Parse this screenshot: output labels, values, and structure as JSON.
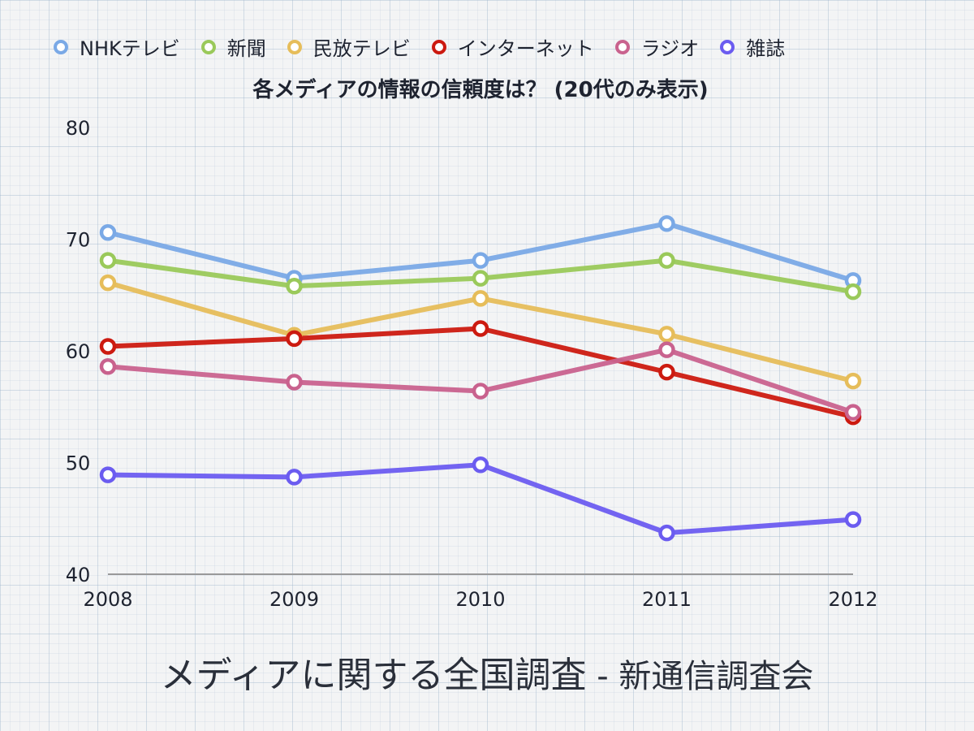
{
  "chart_data": {
    "type": "line",
    "title": "各メディアの情報の信頼度は？ (20代のみ表示)",
    "x": [
      "2008",
      "2009",
      "2010",
      "2011",
      "2012"
    ],
    "ylim": [
      40,
      80
    ],
    "yticks": [
      "40",
      "50",
      "60",
      "70",
      "80"
    ],
    "grid": false,
    "legend_position": "top",
    "series": [
      {
        "name": "NHKテレビ",
        "color": "#7aa9e6",
        "values": [
          70.6,
          66.5,
          68.1,
          71.4,
          66.3
        ]
      },
      {
        "name": "新聞",
        "color": "#9ac95a",
        "values": [
          68.1,
          65.8,
          66.5,
          68.1,
          65.3
        ]
      },
      {
        "name": "民放テレビ",
        "color": "#e6bd5a",
        "values": [
          66.1,
          61.4,
          64.7,
          61.5,
          57.3
        ]
      },
      {
        "name": "インターネット",
        "color": "#cc1a10",
        "values": [
          60.4,
          61.1,
          62.0,
          58.1,
          54.1
        ]
      },
      {
        "name": "ラジオ",
        "color": "#c9628e",
        "values": [
          58.6,
          57.2,
          56.4,
          60.1,
          54.5
        ]
      },
      {
        "name": "雑誌",
        "color": "#6b5cf0",
        "values": [
          48.9,
          48.7,
          49.8,
          43.7,
          44.9
        ]
      }
    ]
  },
  "footer": {
    "main": "メディアに関する全国調査",
    "sep": " - ",
    "org": "新通信調査会"
  }
}
